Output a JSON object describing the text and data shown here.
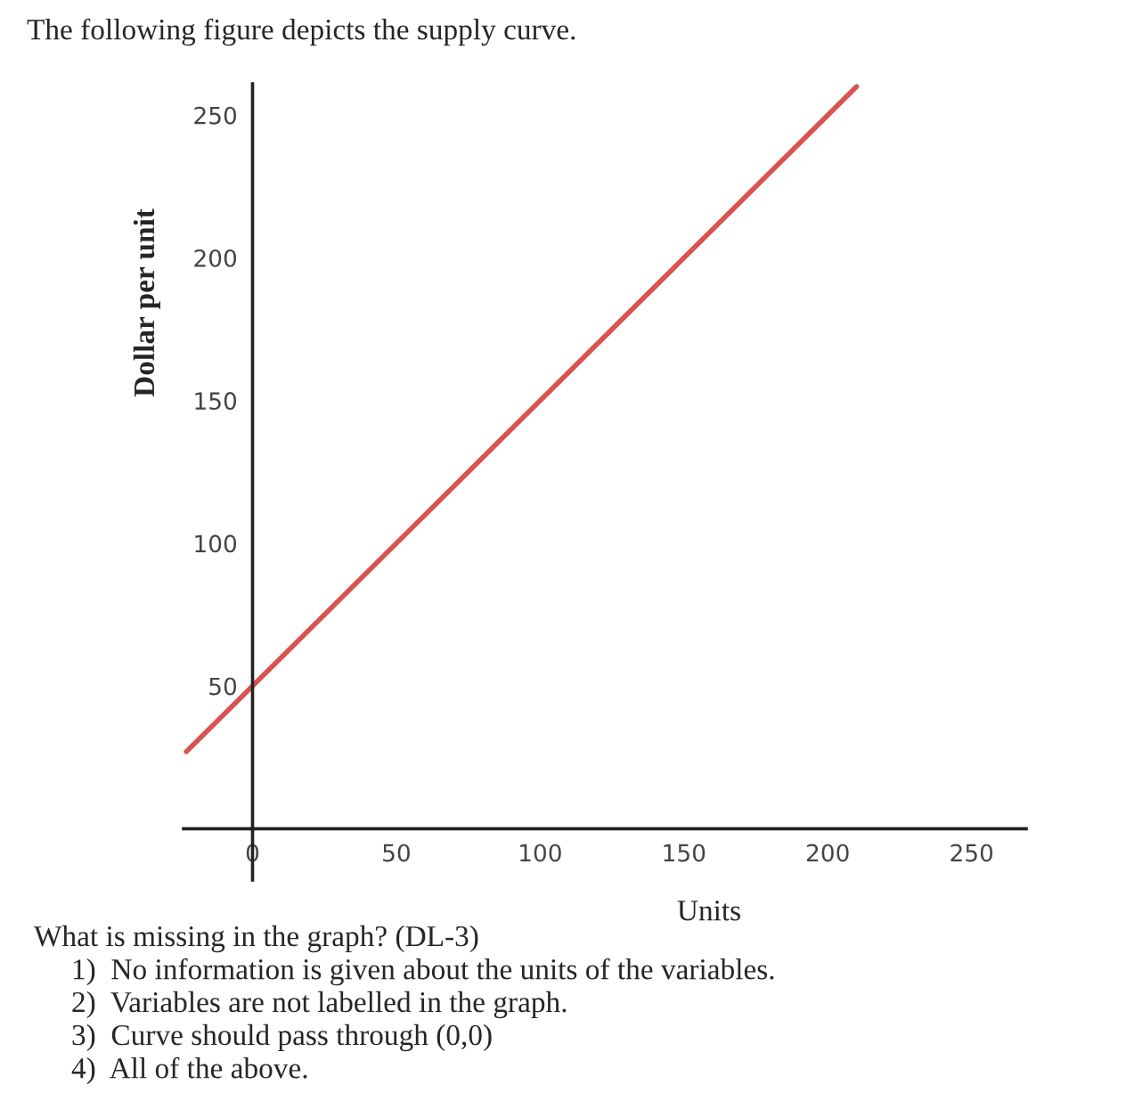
{
  "chart_data": {
    "type": "line",
    "title": "The following figure depicts the supply curve.",
    "xlabel": "Units",
    "ylabel": "Dollar per unit",
    "series": [
      {
        "color": "#d9534f",
        "x": [
          -23,
          210
        ],
        "values": [
          27,
          260
        ]
      }
    ],
    "xlim": [
      -24,
      269
    ],
    "ylim": [
      -18,
      261
    ],
    "xticks": [
      0,
      50,
      100,
      150,
      200,
      250
    ],
    "yticks": [
      50,
      100,
      150,
      200,
      250
    ],
    "grid": false,
    "legend": false,
    "marker": "none",
    "line_style": "solid",
    "annotations": [
      "What is missing in the graph? (DL-3)",
      "1)  No information is given about the units of the variables.",
      "2)  Variables are not labelled in the graph.",
      "3)  Curve should pass through (0,0)",
      "4)  All of the above."
    ]
  }
}
